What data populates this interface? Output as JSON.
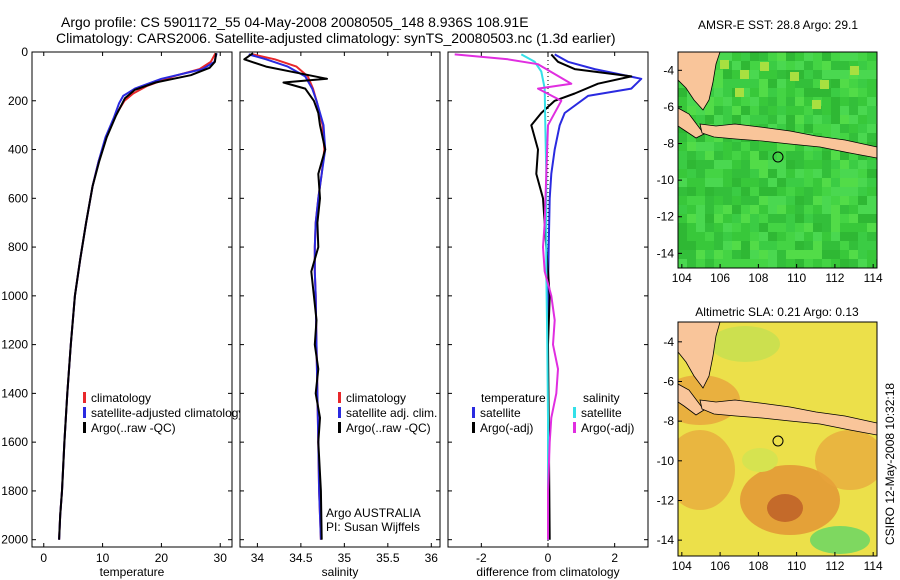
{
  "title_line1": "Argo profile: CS 5901172_55 04-May-2008 20080505_148 8.936S 108.91E",
  "title_line2": "Climatology: CARS2006. Satellite-adjusted climatology: synTS_20080503.nc (1.3d earlier)",
  "credit": "CSIRO 12-May-2008 10:32:18",
  "colors": {
    "clim": "#e8282b",
    "sat": "#2a2ae0",
    "argo": "#000000",
    "sal_sat": "#33e0e8",
    "sal_argo": "#e02ee0",
    "land": "#f9c59a"
  },
  "chart_data": [
    {
      "type": "line",
      "xlabel": "temperature",
      "xticks": [
        0,
        10,
        20,
        30
      ],
      "xlim": [
        -2,
        32
      ],
      "ylim": [
        2030,
        0
      ],
      "yticks": [
        0,
        200,
        400,
        600,
        800,
        1000,
        1200,
        1400,
        1600,
        1800,
        2000
      ],
      "legend": [
        "climatology",
        "satellite-adjusted climatology",
        "Argo(..raw -QC)"
      ],
      "series": [
        {
          "name": "climatology",
          "color": "clim",
          "x": [
            29.2,
            28.4,
            26.5,
            22.0,
            17.5,
            15.2,
            13.7,
            12.2,
            10.6,
            9.3,
            8.3,
            7.2,
            6.2,
            5.3,
            4.6,
            4.0,
            3.5,
            3.1,
            2.8,
            2.6
          ],
          "y": [
            5,
            40,
            70,
            100,
            140,
            170,
            200,
            260,
            350,
            450,
            550,
            700,
            850,
            1000,
            1200,
            1400,
            1600,
            1800,
            1900,
            2000
          ]
        },
        {
          "name": "satellite-adjusted climatology",
          "color": "sat",
          "x": [
            29.4,
            29.0,
            27.0,
            20.0,
            15.5,
            13.5,
            12.8,
            11.9,
            10.5,
            9.3,
            8.3,
            7.2,
            6.2,
            5.3,
            4.6,
            4.0,
            3.5,
            3.1,
            2.8,
            2.6
          ],
          "y": [
            5,
            40,
            70,
            110,
            150,
            180,
            210,
            270,
            350,
            450,
            550,
            700,
            850,
            1000,
            1200,
            1400,
            1600,
            1800,
            1900,
            2000
          ]
        },
        {
          "name": "Argo(..raw -QC)",
          "color": "argo",
          "x": [
            29.3,
            29.1,
            28.2,
            25.0,
            19.0,
            15.5,
            13.8,
            12.3,
            10.7,
            9.4,
            8.3,
            7.2,
            6.2,
            5.3,
            4.6,
            4.0,
            3.5,
            3.1,
            2.8,
            2.6
          ],
          "y": [
            5,
            40,
            65,
            95,
            125,
            155,
            190,
            260,
            350,
            450,
            550,
            700,
            850,
            1000,
            1200,
            1400,
            1600,
            1800,
            1900,
            2000
          ]
        }
      ]
    },
    {
      "type": "line",
      "xlabel": "salinity",
      "xticks": [
        34,
        34.5,
        35,
        35.5,
        36
      ],
      "xlim": [
        33.8,
        36.1
      ],
      "ylim": [
        2030,
        0
      ],
      "legend": [
        "climatology",
        "satellite adj. clim.",
        "Argo(..raw -QC)"
      ],
      "annotation": [
        "Argo AUSTRALIA",
        "PI: Susan Wijffels"
      ],
      "series": [
        {
          "name": "climatology",
          "color": "clim",
          "x": [
            33.95,
            34.2,
            34.45,
            34.58,
            34.64,
            34.68,
            34.75,
            34.77,
            34.74,
            34.7,
            34.67,
            34.66,
            34.66,
            34.67,
            34.68,
            34.69,
            34.7,
            34.71,
            34.72,
            34.73
          ],
          "y": [
            10,
            30,
            60,
            100,
            150,
            200,
            300,
            400,
            500,
            600,
            700,
            800,
            900,
            1000,
            1200,
            1400,
            1600,
            1800,
            1900,
            2000
          ]
        },
        {
          "name": "satellite adj. clim.",
          "color": "sat",
          "x": [
            33.9,
            34.1,
            34.35,
            34.55,
            34.63,
            34.68,
            34.76,
            34.78,
            34.74,
            34.7,
            34.67,
            34.66,
            34.66,
            34.67,
            34.68,
            34.69,
            34.7,
            34.71,
            34.72,
            34.73
          ],
          "y": [
            10,
            30,
            60,
            100,
            150,
            200,
            300,
            400,
            500,
            600,
            700,
            800,
            900,
            1000,
            1200,
            1400,
            1600,
            1800,
            1900,
            2000
          ]
        },
        {
          "name": "Argo(..raw -QC)",
          "color": "argo",
          "x": [
            33.95,
            33.85,
            34.1,
            34.45,
            34.8,
            34.3,
            34.55,
            34.65,
            34.7,
            34.72,
            34.78,
            34.7,
            34.72,
            34.69,
            34.7,
            34.66,
            34.62,
            34.65,
            34.68,
            34.66,
            34.7,
            34.67,
            34.72,
            34.7,
            34.73,
            34.74
          ],
          "y": [
            5,
            30,
            60,
            85,
            110,
            125,
            150,
            200,
            250,
            300,
            400,
            500,
            600,
            700,
            800,
            850,
            900,
            1000,
            1100,
            1200,
            1300,
            1400,
            1500,
            1600,
            1800,
            2000
          ]
        }
      ]
    },
    {
      "type": "line",
      "xlabel": "difference from climatology",
      "xticks": [
        -2,
        0,
        2
      ],
      "xlim": [
        -3.0,
        3.0
      ],
      "ylim": [
        2030,
        0
      ],
      "legend": [
        {
          "heading": "temperature",
          "items": [
            "satellite",
            "Argo(-adj)"
          ]
        },
        {
          "heading": "salinity",
          "items": [
            "satellite",
            "Argo(-adj)"
          ]
        }
      ],
      "series": [
        {
          "name": "temperature satellite",
          "color": "sat",
          "x": [
            0.2,
            0.6,
            1.4,
            2.8,
            2.5,
            1.2,
            0.5,
            0.35,
            0.2,
            0.1,
            0.05,
            0.02,
            0.0,
            0.0,
            0.0,
            0.0,
            0.0
          ],
          "y": [
            10,
            40,
            70,
            110,
            150,
            180,
            250,
            300,
            400,
            500,
            600,
            800,
            1000,
            1200,
            1500,
            1800,
            2000
          ]
        },
        {
          "name": "temperature Argo(-adj)",
          "color": "argo",
          "x": [
            0.1,
            0.3,
            0.8,
            2.5,
            1.5,
            0.8,
            0.2,
            -0.2,
            -0.5,
            -0.3,
            -0.35,
            -0.15,
            -0.05,
            0.05,
            0.0,
            0.02,
            0.05
          ],
          "y": [
            10,
            40,
            70,
            100,
            130,
            170,
            200,
            250,
            300,
            400,
            500,
            600,
            800,
            1000,
            1200,
            1500,
            2000
          ]
        },
        {
          "name": "salinity satellite",
          "color": "sal_sat",
          "x": [
            -0.8,
            -0.4,
            -0.2,
            -0.1,
            -0.08,
            -0.05,
            -0.05,
            -0.05,
            -0.02,
            0.0,
            0.0,
            0.0,
            0.0
          ],
          "y": [
            10,
            40,
            80,
            150,
            300,
            500,
            700,
            900,
            1200,
            1500,
            1700,
            1900,
            2000
          ]
        },
        {
          "name": "salinity Argo(-adj)",
          "color": "sal_argo",
          "x": [
            -2.8,
            -1.2,
            -0.3,
            0.7,
            -0.3,
            0.4,
            0.0,
            -0.05,
            -0.1,
            -0.15,
            -0.1,
            0.1,
            0.2,
            0.15,
            0.3,
            0.25,
            0.1,
            0.05,
            0.0,
            0.0
          ],
          "y": [
            10,
            30,
            50,
            130,
            150,
            200,
            300,
            500,
            700,
            800,
            900,
            1000,
            1100,
            1200,
            1300,
            1400,
            1500,
            1600,
            1800,
            2000
          ]
        }
      ]
    },
    {
      "type": "heatmap",
      "title": "AMSR-E SST: 28.8 Argo: 29.1",
      "xticks": [
        104,
        106,
        108,
        110,
        112,
        114
      ],
      "yticks": [
        -4,
        -6,
        -8,
        -10,
        -12,
        -14
      ],
      "xlim": [
        103.8,
        114.2
      ],
      "ylim": [
        -14.8,
        -3.0
      ],
      "marker": {
        "lon": 108.91,
        "lat": -8.936
      }
    },
    {
      "type": "heatmap",
      "title": "Altimetric SLA: 0.21 Argo: 0.13",
      "xticks": [
        104,
        106,
        108,
        110,
        112,
        114
      ],
      "yticks": [
        -4,
        -6,
        -8,
        -10,
        -12,
        -14
      ],
      "xlim": [
        103.8,
        114.2
      ],
      "ylim": [
        -14.8,
        -3.0
      ],
      "marker": {
        "lon": 108.91,
        "lat": -8.936
      }
    }
  ]
}
